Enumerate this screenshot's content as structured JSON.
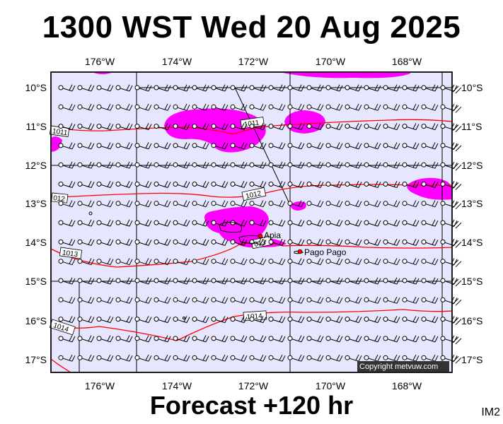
{
  "header": {
    "title": "1300 WST Wed 20 Aug 2025"
  },
  "footer": {
    "forecast": "Forecast +120 hr",
    "image_id": "IM2"
  },
  "map": {
    "lon_labels": [
      "176°W",
      "174°W",
      "172°W",
      "170°W",
      "168°W"
    ],
    "lat_labels": [
      "10°S",
      "11°S",
      "12°S",
      "13°S",
      "14°S",
      "15°S",
      "16°S",
      "17°S"
    ],
    "isobars": [
      {
        "label": "1011"
      },
      {
        "label": "1012"
      },
      {
        "label": "1013"
      },
      {
        "label": "1014"
      }
    ],
    "isobar_color": "#ff0000",
    "precip_color": "#ff00ff",
    "background_color": "#e6e6ff",
    "places": [
      {
        "name": "Apia"
      },
      {
        "name": "Pago Pago"
      }
    ],
    "copyright": "Copyright metvuw.com"
  }
}
